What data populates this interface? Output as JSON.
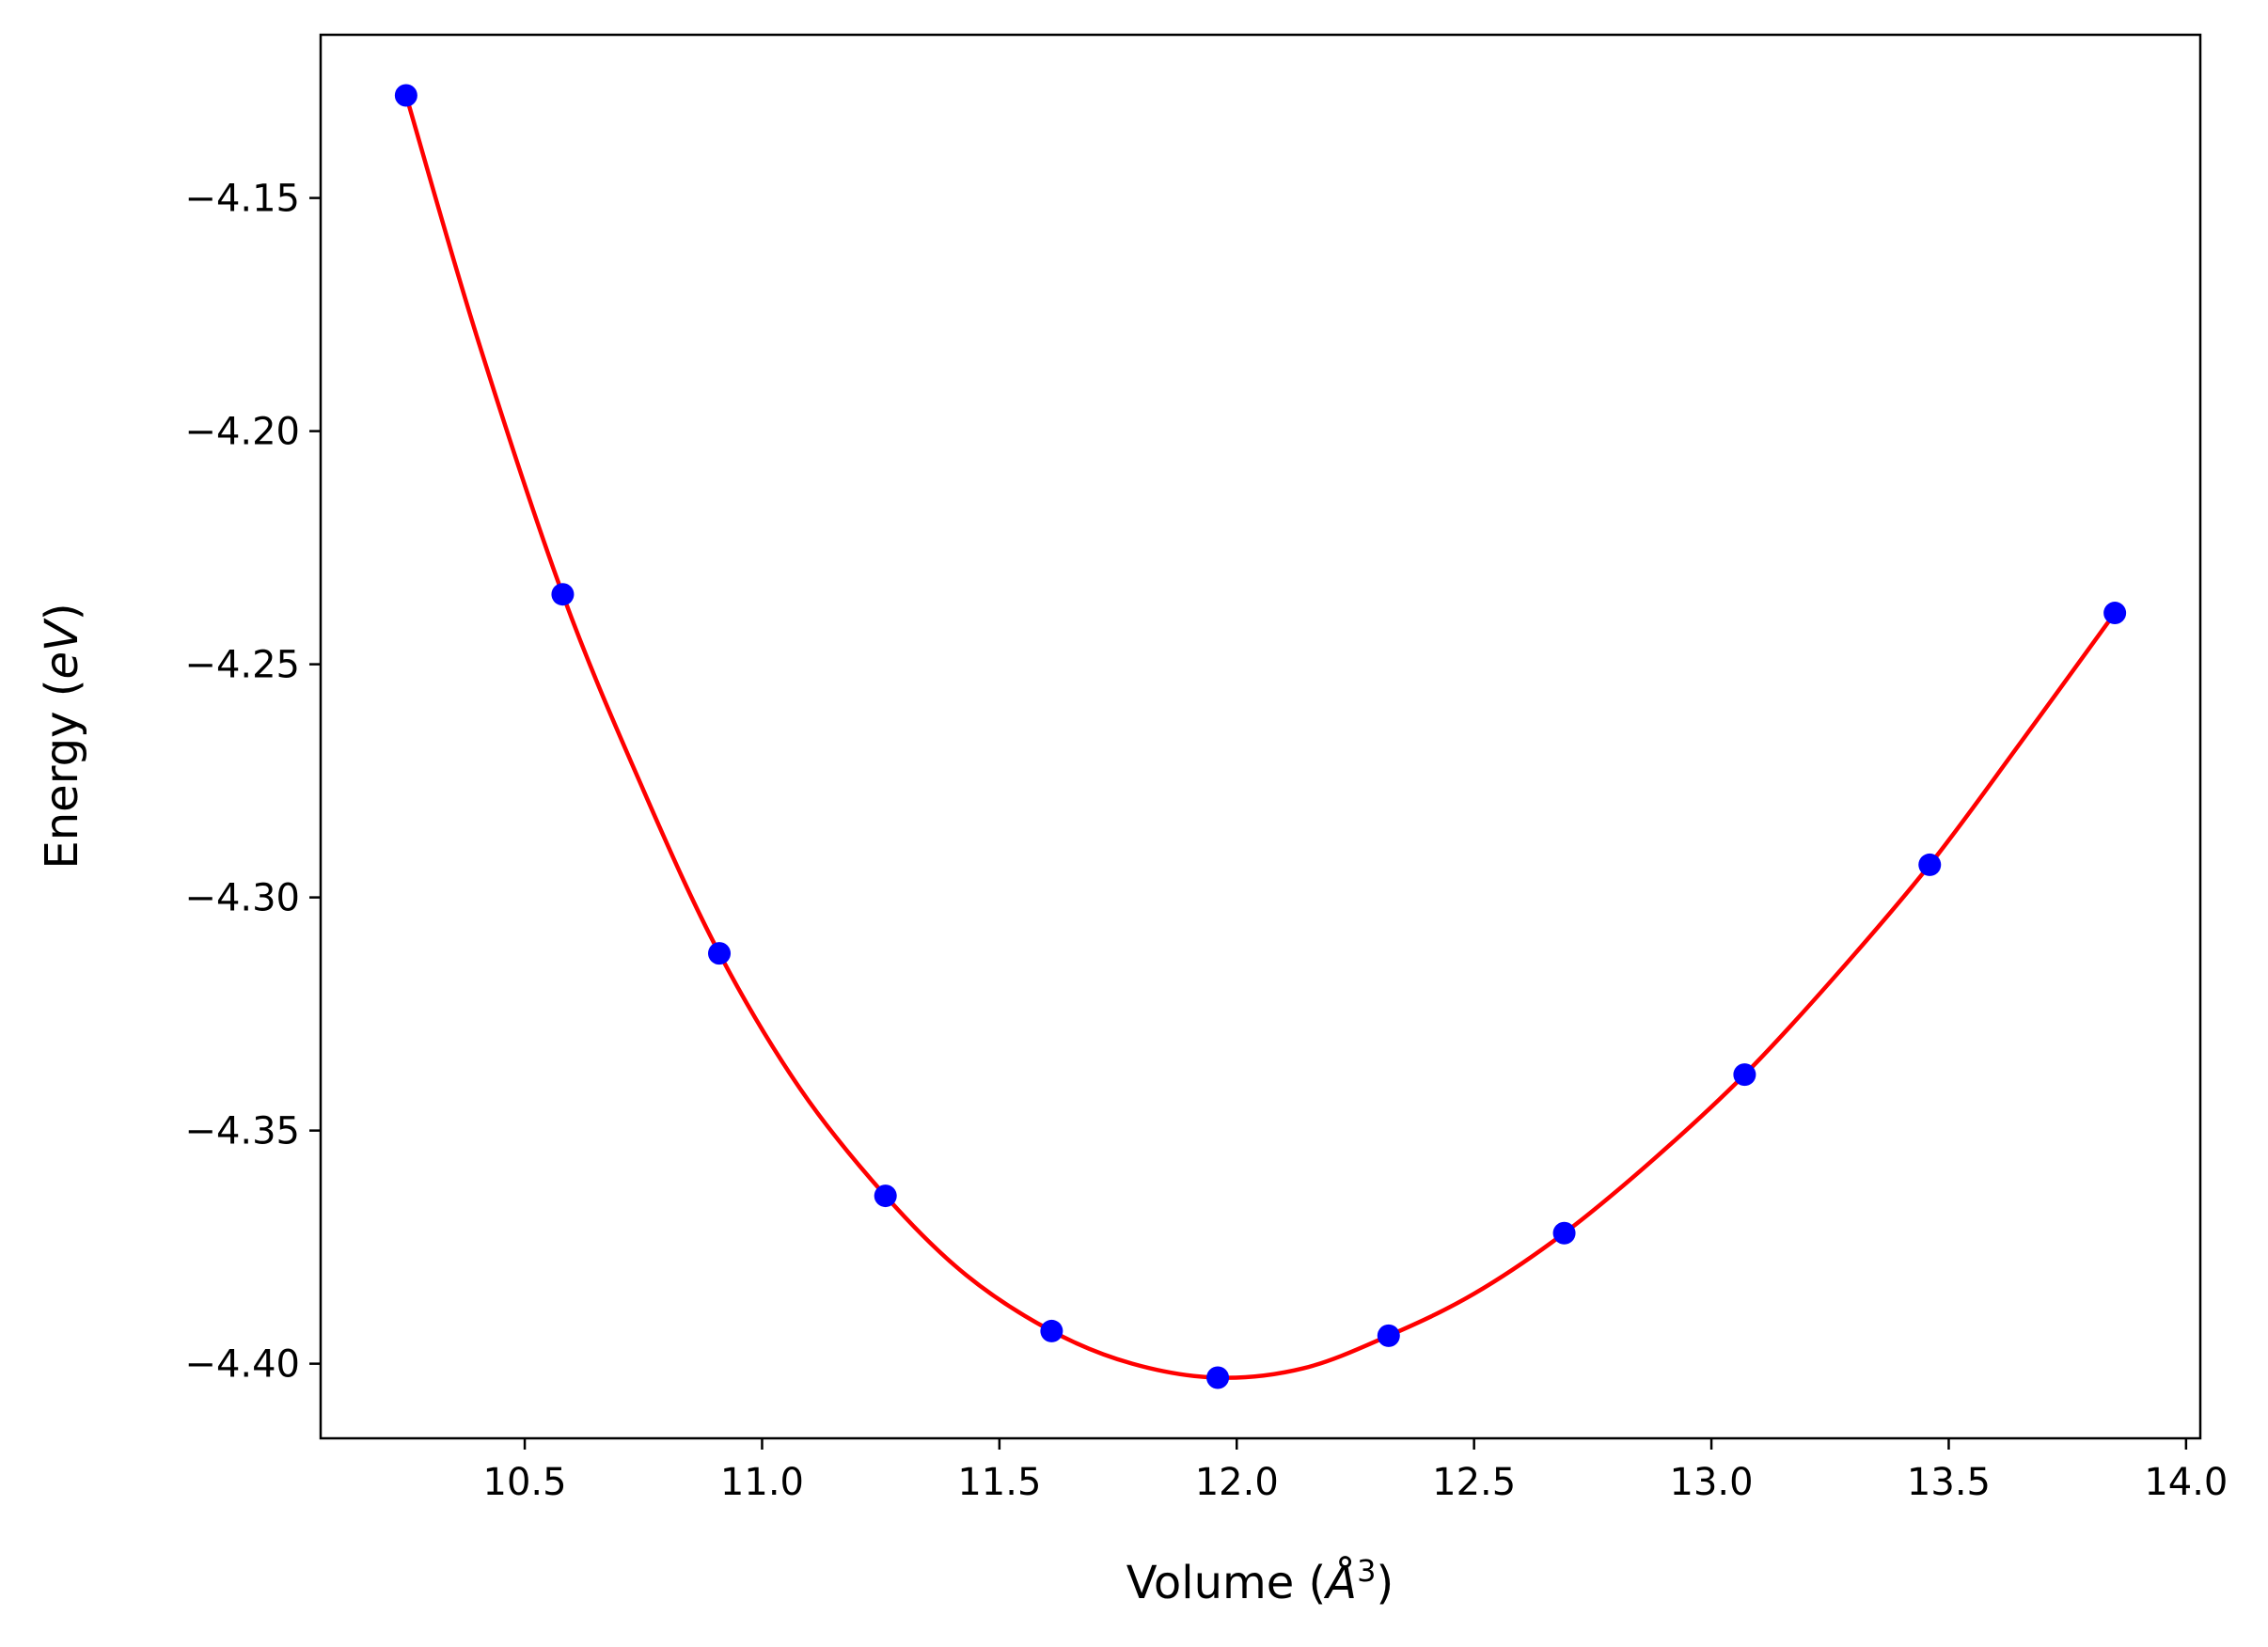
{
  "chart_data": {
    "type": "line",
    "title": "",
    "xlabel": "Volume (",
    "xlabel_italic": "Å",
    "xlabel_sup": "3",
    "xlabel_tail": ")",
    "ylabel": "Energy (",
    "ylabel_italic": "eV",
    "ylabel_tail": ")",
    "xlim": [
      10.07,
      14.03
    ],
    "ylim": [
      -4.416,
      -4.115
    ],
    "xticks": [
      10.5,
      11.0,
      11.5,
      12.0,
      12.5,
      13.0,
      13.5,
      14.0
    ],
    "xtick_labels": [
      "10.5",
      "11.0",
      "11.5",
      "12.0",
      "12.5",
      "13.0",
      "13.5",
      "14.0"
    ],
    "yticks": [
      -4.15,
      -4.2,
      -4.25,
      -4.3,
      -4.35,
      -4.4
    ],
    "ytick_labels": [
      "−4.15",
      "−4.20",
      "−4.25",
      "−4.30",
      "−4.35",
      "−4.40"
    ],
    "grid": false,
    "series": [
      {
        "style": "markers",
        "color": "#0000ff",
        "x": [
          10.25,
          10.58,
          10.91,
          11.26,
          11.61,
          11.96,
          12.32,
          12.69,
          13.07,
          13.46,
          13.85
        ],
        "y": [
          -4.128,
          -4.235,
          -4.312,
          -4.364,
          -4.393,
          -4.403,
          -4.394,
          -4.372,
          -4.338,
          -4.293,
          -4.239
        ]
      },
      {
        "style": "line",
        "color": "#ff0000",
        "x": [
          10.25,
          10.4,
          10.58,
          10.75,
          10.91,
          11.08,
          11.26,
          11.43,
          11.61,
          11.78,
          11.96,
          12.14,
          12.32,
          12.5,
          12.69,
          12.88,
          13.07,
          13.26,
          13.46,
          13.65,
          13.85
        ],
        "y": [
          -4.128,
          -4.18,
          -4.235,
          -4.277,
          -4.312,
          -4.341,
          -4.364,
          -4.381,
          -4.393,
          -4.4,
          -4.403,
          -4.401,
          -4.394,
          -4.385,
          -4.372,
          -4.356,
          -4.338,
          -4.317,
          -4.293,
          -4.267,
          -4.239
        ]
      }
    ]
  }
}
